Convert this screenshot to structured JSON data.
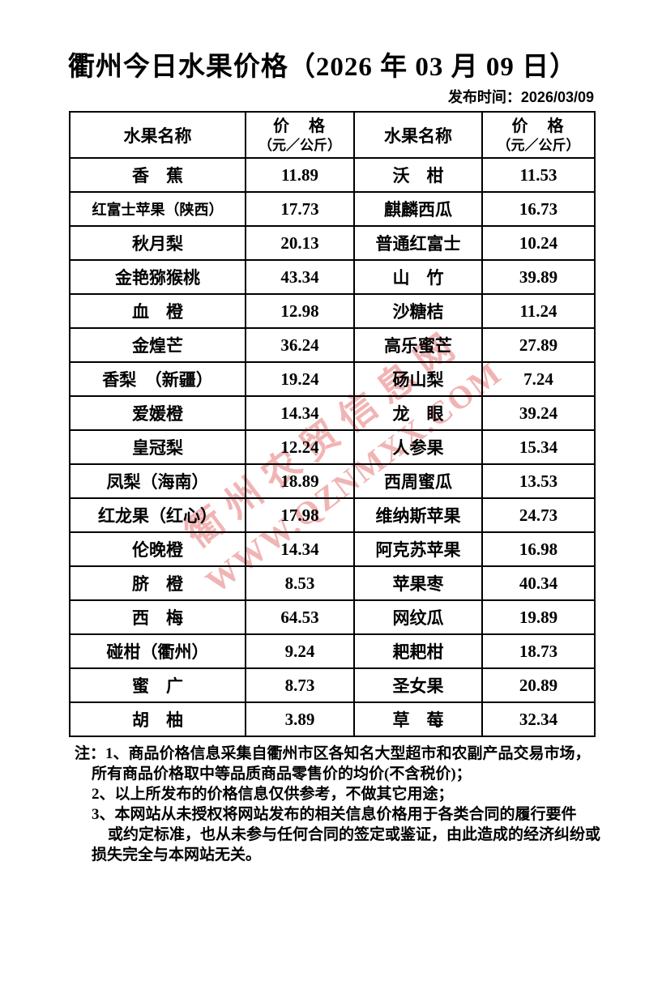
{
  "page": {
    "title": "衢州今日水果价格（2026 年 03 月 09 日）",
    "publish_time": "发布时间：2026/03/09"
  },
  "table": {
    "headers": {
      "name": "水果名称",
      "price_line1": "价　格",
      "price_line2": "（元／公斤）"
    },
    "rows": [
      {
        "name_left": "香　蕉",
        "price_left": "11.89",
        "name_right": "沃　柑",
        "price_right": "11.53"
      },
      {
        "name_left": "红富士苹果（陕西）",
        "price_left": "17.73",
        "name_right": "麒麟西瓜",
        "price_right": "16.73"
      },
      {
        "name_left": "秋月梨",
        "price_left": "20.13",
        "name_right": "普通红富士",
        "price_right": "10.24"
      },
      {
        "name_left": "金艳猕猴桃",
        "price_left": "43.34",
        "name_right": "山　竹",
        "price_right": "39.89"
      },
      {
        "name_left": "血　橙",
        "price_left": "12.98",
        "name_right": "沙糖桔",
        "price_right": "11.24"
      },
      {
        "name_left": "金煌芒",
        "price_left": "36.24",
        "name_right": "高乐蜜芒",
        "price_right": "27.89"
      },
      {
        "name_left": "香梨　（新疆）",
        "price_left": "19.24",
        "name_right": "砀山梨",
        "price_right": "7.24"
      },
      {
        "name_left": "爱媛橙",
        "price_left": "14.34",
        "name_right": "龙　眼",
        "price_right": "39.24"
      },
      {
        "name_left": "皇冠梨",
        "price_left": "12.24",
        "name_right": "人参果",
        "price_right": "15.34"
      },
      {
        "name_left": "凤梨（海南）",
        "price_left": "18.89",
        "name_right": "西周蜜瓜",
        "price_right": "13.53"
      },
      {
        "name_left": "红龙果（红心）",
        "price_left": "17.98",
        "name_right": "维纳斯苹果",
        "price_right": "24.73"
      },
      {
        "name_left": "伦晚橙",
        "price_left": "14.34",
        "name_right": "阿克苏苹果",
        "price_right": "16.98"
      },
      {
        "name_left": "脐　橙",
        "price_left": "8.53",
        "name_right": "苹果枣",
        "price_right": "40.34"
      },
      {
        "name_left": "西　梅",
        "price_left": "64.53",
        "name_right": "网纹瓜",
        "price_right": "19.89"
      },
      {
        "name_left": "碰柑（衢州）",
        "price_left": "9.24",
        "name_right": "耙耙柑",
        "price_right": "18.73"
      },
      {
        "name_left": "蜜　广",
        "price_left": "8.73",
        "name_right": "圣女果",
        "price_right": "20.89"
      },
      {
        "name_left": "胡　柚",
        "price_left": "3.89",
        "name_right": "草　莓",
        "price_right": "32.34"
      }
    ]
  },
  "notes": {
    "lines": [
      "注：1、商品价格信息采集自衢州市区各知名大型超市和农副产品交易市场，",
      "所有商品价格取中等品质商品零售价的均价(不含税价)；",
      "2、以上所发布的价格信息仅供参考，不做其它用途；",
      "3、本网站从未授权将网站发布的相关信息价格用于各类合同的履行要件",
      "或约定标准，也从未参与任何合同的签定或鉴证，由此造成的经济纠纷或",
      "损失完全与本网站无关。"
    ]
  },
  "watermark": {
    "line1": "衢州农贸信息网",
    "line2": "WWW.QZNMXX.COM",
    "color": "#de4e4e"
  }
}
